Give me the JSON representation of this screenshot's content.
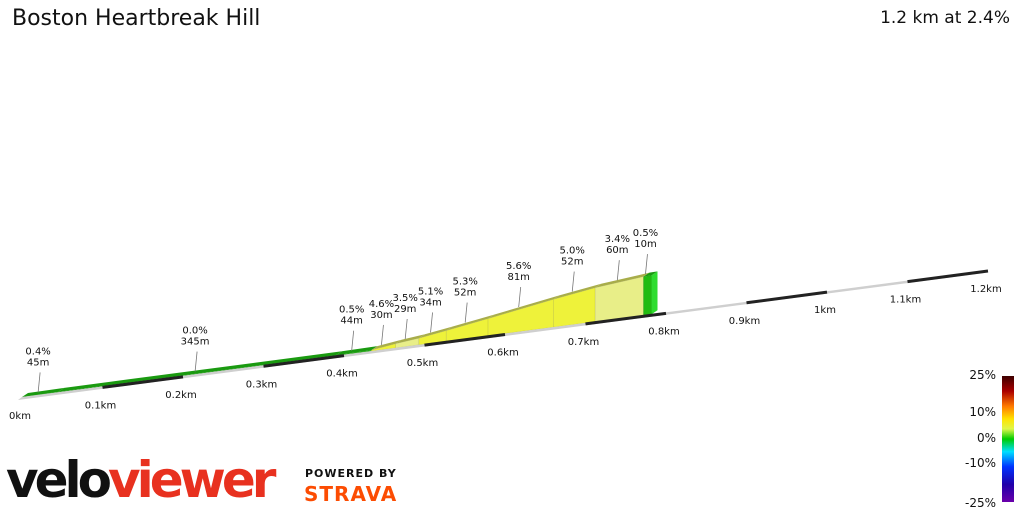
{
  "header": {
    "title": "Boston Heartbreak Hill",
    "summary": "1.2 km at 2.4%"
  },
  "brand": {
    "logo_text_dark": "velo",
    "logo_text_red": "viewer",
    "powered_by": "POWERED BY",
    "partner": "STRAVA"
  },
  "legend": {
    "labels": [
      "25%",
      "10%",
      "0%",
      "-10%",
      "-25%"
    ]
  },
  "colors": {
    "green": "#22bb11",
    "light_yellow": "#e8ee88",
    "yellow": "#eef23a",
    "axis_dark": "#222222",
    "brand_red": "#e8311f",
    "strava_orange": "#fc4c02"
  },
  "chart_data": {
    "type": "area",
    "title": "Boston Heartbreak Hill",
    "xlabel": "",
    "ylabel": "",
    "x_unit": "km",
    "x_ticks": [
      "0km",
      "0.1km",
      "0.2km",
      "0.3km",
      "0.4km",
      "0.5km",
      "0.6km",
      "0.7km",
      "0.8km",
      "0.9km",
      "1km",
      "1.1km",
      "1.2km"
    ],
    "total_distance_km": 1.2,
    "avg_gradient_pct": 2.4,
    "segments": [
      {
        "grade": "0.4%",
        "length": "45m",
        "grade_pct": 0.4,
        "length_m": 45
      },
      {
        "grade": "0.0%",
        "length": "345m",
        "grade_pct": 0.0,
        "length_m": 345
      },
      {
        "grade": "0.5%",
        "length": "44m",
        "grade_pct": 0.5,
        "length_m": 44
      },
      {
        "grade": "4.6%",
        "length": "30m",
        "grade_pct": 4.6,
        "length_m": 30
      },
      {
        "grade": "3.5%",
        "length": "29m",
        "grade_pct": 3.5,
        "length_m": 29
      },
      {
        "grade": "5.1%",
        "length": "34m",
        "grade_pct": 5.1,
        "length_m": 34
      },
      {
        "grade": "5.3%",
        "length": "52m",
        "grade_pct": 5.3,
        "length_m": 52
      },
      {
        "grade": "5.6%",
        "length": "81m",
        "grade_pct": 5.6,
        "length_m": 81
      },
      {
        "grade": "5.0%",
        "length": "52m",
        "grade_pct": 5.0,
        "length_m": 52
      },
      {
        "grade": "3.4%",
        "length": "60m",
        "grade_pct": 3.4,
        "length_m": 60
      },
      {
        "grade": "0.5%",
        "length": "10m",
        "grade_pct": 0.5,
        "length_m": 10
      }
    ],
    "color_scale_pct": [
      -25,
      -10,
      0,
      10,
      25
    ]
  }
}
